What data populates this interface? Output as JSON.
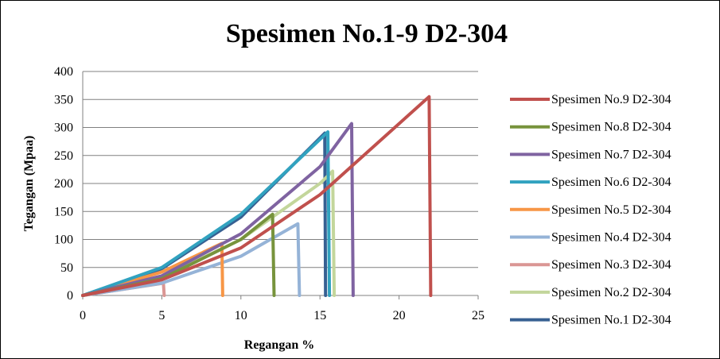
{
  "chart_data": {
    "type": "line",
    "title": "Spesimen No.1-9 D2-304",
    "xlabel": "Regangan %",
    "ylabel": "Tegangan  (Mpaa)",
    "xlim": [
      0,
      25
    ],
    "ylim": [
      0,
      400
    ],
    "x_ticks": [
      "0",
      "5",
      "10",
      "15",
      "20",
      "25"
    ],
    "y_ticks": [
      "0",
      "50",
      "100",
      "150",
      "200",
      "250",
      "300",
      "350",
      "400"
    ],
    "grid": "horizontal",
    "legend_position": "right",
    "series": [
      {
        "name": "Spesimen No.9 D2-304",
        "color": "#C0504D",
        "x": [
          0,
          5,
          10,
          15,
          21.9,
          22.0
        ],
        "y": [
          0,
          28,
          85,
          180,
          355,
          0
        ]
      },
      {
        "name": "Spesimen No.8 D2-304",
        "color": "#77933C",
        "x": [
          0,
          5,
          10,
          12.0,
          12.1
        ],
        "y": [
          0,
          30,
          100,
          145,
          0
        ]
      },
      {
        "name": "Spesimen No.7 D2-304",
        "color": "#7F63A1",
        "x": [
          0,
          5,
          10,
          15,
          17.0,
          17.1
        ],
        "y": [
          0,
          35,
          110,
          230,
          307,
          0
        ]
      },
      {
        "name": "Spesimen No.6 D2-304",
        "color": "#31A2BF",
        "x": [
          0,
          5,
          10,
          15.5,
          15.6
        ],
        "y": [
          0,
          50,
          145,
          292,
          0
        ]
      },
      {
        "name": "Spesimen No.5 D2-304",
        "color": "#F79646",
        "x": [
          0,
          5,
          8.8,
          8.85
        ],
        "y": [
          0,
          42,
          93,
          0
        ]
      },
      {
        "name": "Spesimen No.4 D2-304",
        "color": "#95B3D7",
        "x": [
          0,
          5,
          10,
          13.6,
          13.7
        ],
        "y": [
          0,
          22,
          70,
          128,
          0
        ]
      },
      {
        "name": "Spesimen No.3 D2-304",
        "color": "#DA9694",
        "x": [
          0,
          5.1,
          5.15
        ],
        "y": [
          0,
          22,
          0
        ]
      },
      {
        "name": "Spesimen No.2 D2-304",
        "color": "#C3D69B",
        "x": [
          0,
          5,
          10,
          15,
          15.8,
          15.9
        ],
        "y": [
          0,
          32,
          100,
          200,
          222,
          0
        ]
      },
      {
        "name": "Spesimen No.1 D2-304",
        "color": "#376092",
        "x": [
          0,
          5,
          10,
          15.3,
          15.35
        ],
        "y": [
          0,
          48,
          140,
          290,
          0
        ]
      }
    ]
  }
}
